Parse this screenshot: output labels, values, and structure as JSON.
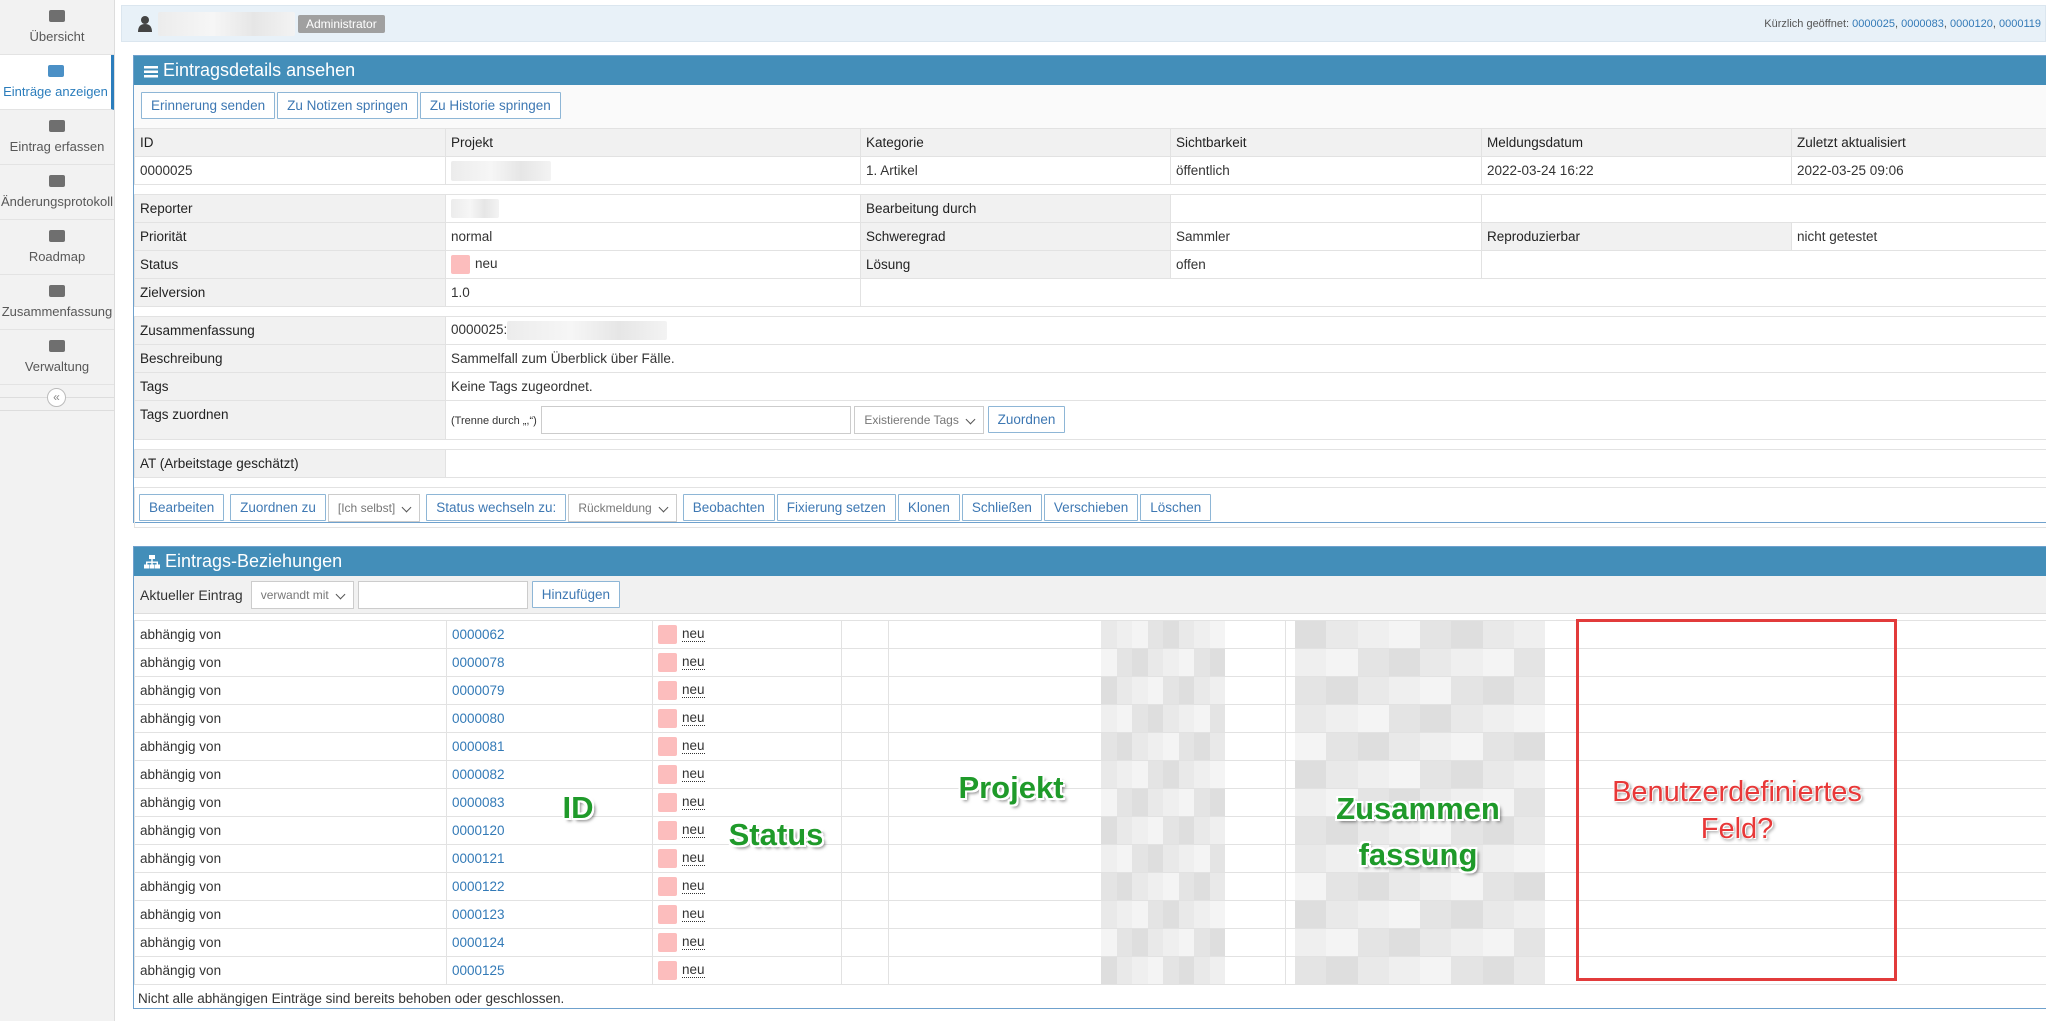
{
  "sidebar": {
    "items": [
      "Übersicht",
      "Einträge anzeigen",
      "Eintrag erfassen",
      "Änderungsprotokoll",
      "Roadmap",
      "Zusammenfassung",
      "Verwaltung"
    ],
    "collapse": "«"
  },
  "topbar": {
    "role": "Administrator",
    "recent_label": "Kürzlich geöffnet:",
    "recent": [
      "0000025",
      "0000083",
      "0000120",
      "0000119"
    ]
  },
  "details": {
    "title": "Eintragsdetails ansehen",
    "nav_buttons": [
      "Erinnerung senden",
      "Zu Notizen springen",
      "Zu Historie springen"
    ],
    "columns": [
      "ID",
      "Projekt",
      "Kategorie",
      "Sichtbarkeit",
      "Meldungsdatum",
      "Zuletzt aktualisiert"
    ],
    "values": {
      "id": "0000025",
      "kategorie": "1. Artikel",
      "sichtbarkeit": "öffentlich",
      "meldungsdatum": "2022-03-24 16:22",
      "aktualisiert": "2022-03-25 09:06"
    },
    "reporter": "Reporter",
    "bearbeitung": "Bearbeitung durch",
    "prioritaet": {
      "label": "Priorität",
      "value": "normal"
    },
    "schweregrad": {
      "label": "Schweregrad",
      "value": "Sammler"
    },
    "reproduzierbar": {
      "label": "Reproduzierbar",
      "value": "nicht getestet"
    },
    "status": {
      "label": "Status",
      "value": "neu"
    },
    "loesung": {
      "label": "Lösung",
      "value": "offen"
    },
    "zielversion": {
      "label": "Zielversion",
      "value": "1.0"
    },
    "zusammenfassung": {
      "label": "Zusammenfassung",
      "value": "0000025:"
    },
    "beschreibung": {
      "label": "Beschreibung",
      "value": "Sammelfall zum Überblick über Fälle."
    },
    "tags": {
      "label": "Tags",
      "value": "Keine Tags zugeordnet."
    },
    "tags_zuordnen": {
      "label": "Tags zuordnen",
      "hint": "(Trenne durch „,“)",
      "select": "Existierende Tags",
      "button": "Zuordnen"
    },
    "at": "AT (Arbeitstage geschätzt)",
    "actions": {
      "bearbeiten": "Bearbeiten",
      "zuordnen": "Zuordnen zu",
      "zuordnen_select": "[Ich selbst]",
      "status": "Status wechseln zu:",
      "status_select": "Rückmeldung",
      "rest": [
        "Beobachten",
        "Fixierung setzen",
        "Klonen",
        "Schließen",
        "Verschieben",
        "Löschen"
      ]
    }
  },
  "relations": {
    "title": "Eintrags-Beziehungen",
    "current": "Aktueller Eintrag",
    "select": "verwandt mit",
    "button": "Hinzufügen",
    "rows": [
      {
        "type": "abhängig von",
        "id": "0000062",
        "status": "neu"
      },
      {
        "type": "abhängig von",
        "id": "0000078",
        "status": "neu"
      },
      {
        "type": "abhängig von",
        "id": "0000079",
        "status": "neu"
      },
      {
        "type": "abhängig von",
        "id": "0000080",
        "status": "neu"
      },
      {
        "type": "abhängig von",
        "id": "0000081",
        "status": "neu"
      },
      {
        "type": "abhängig von",
        "id": "0000082",
        "status": "neu"
      },
      {
        "type": "abhängig von",
        "id": "0000083",
        "status": "neu"
      },
      {
        "type": "abhängig von",
        "id": "0000120",
        "status": "neu"
      },
      {
        "type": "abhängig von",
        "id": "0000121",
        "status": "neu"
      },
      {
        "type": "abhängig von",
        "id": "0000122",
        "status": "neu"
      },
      {
        "type": "abhängig von",
        "id": "0000123",
        "status": "neu"
      },
      {
        "type": "abhängig von",
        "id": "0000124",
        "status": "neu"
      },
      {
        "type": "abhängig von",
        "id": "0000125",
        "status": "neu"
      }
    ],
    "footer": "Nicht alle abhängigen Einträge sind bereits behoben oder geschlossen."
  },
  "annotations": {
    "id": "ID",
    "status": "Status",
    "projekt": "Projekt",
    "zusammenfassung": [
      "Zusammen",
      "fassung"
    ],
    "custom": [
      "Benutzerdefiniertes",
      "Feld?"
    ]
  }
}
